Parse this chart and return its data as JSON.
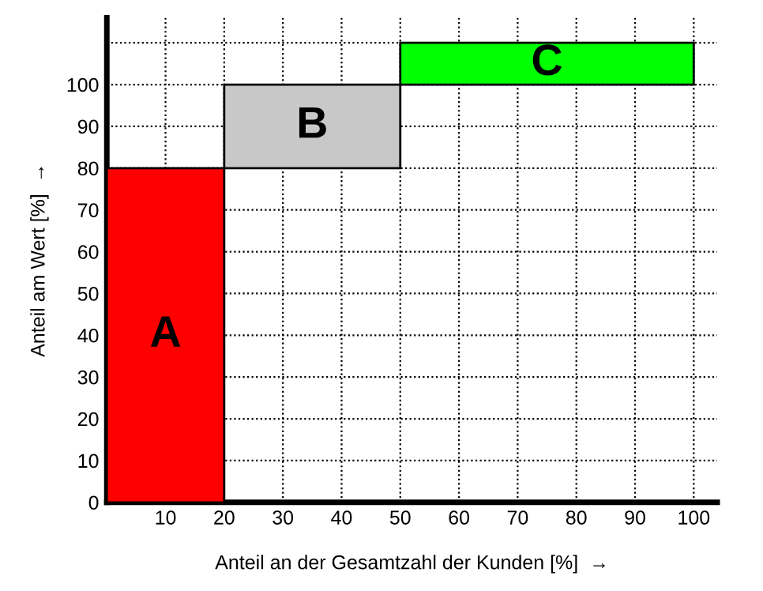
{
  "chart_data": {
    "type": "bar",
    "xlabel": "Anteil an der Gesamtzahl der Kunden [%]  →",
    "ylabel": "Anteil am Wert [%]  →",
    "x": [
      10,
      35,
      75
    ],
    "base": [
      0,
      80,
      100
    ],
    "values": [
      80,
      20,
      10
    ],
    "colors": [
      "#ff0000",
      "#c8c8c8",
      "#00ff00"
    ],
    "annotations": [
      "A",
      "B",
      "C"
    ],
    "xlim": [
      0,
      104
    ],
    "ylim": [
      0,
      116
    ],
    "xticks": [
      10,
      20,
      30,
      40,
      50,
      60,
      70,
      80,
      90,
      100
    ],
    "yticks": [
      0,
      10,
      20,
      30,
      40,
      50,
      60,
      70,
      80,
      90,
      100,
      {
        "value": 110,
        "label": null
      }
    ],
    "grid": true
  }
}
